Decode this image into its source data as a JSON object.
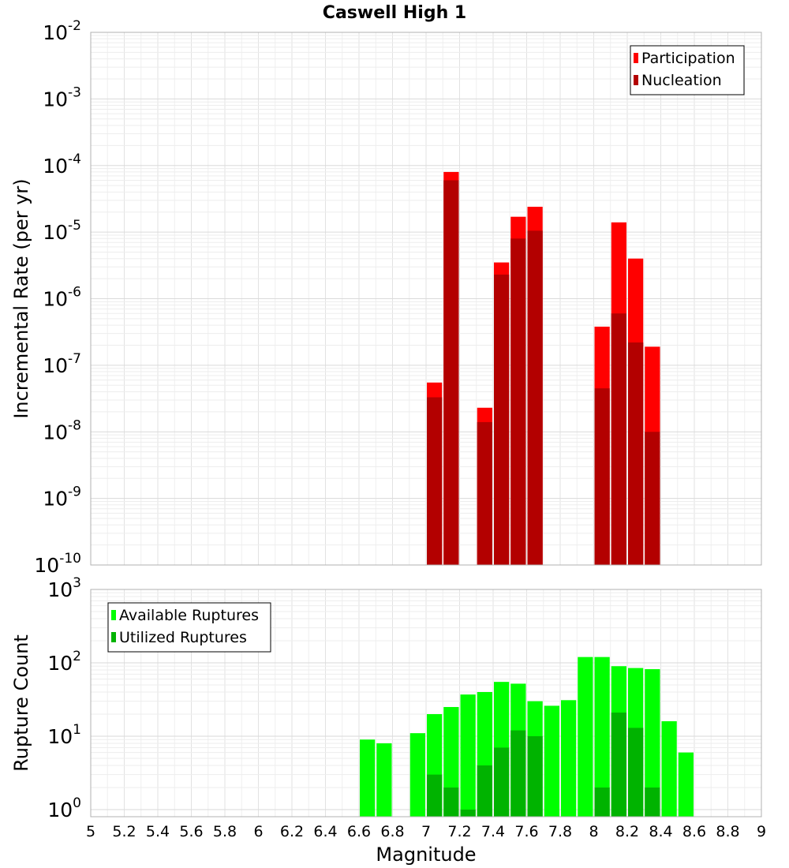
{
  "chart_data": [
    {
      "type": "bar",
      "title": "Caswell High 1",
      "ylabel": "Incremental Rate (per yr)",
      "yscale": "log",
      "ylim": [
        1e-10,
        0.01
      ],
      "xlim": [
        5,
        9
      ],
      "y_tick_bases": [
        "10",
        "10",
        "10",
        "10",
        "10",
        "10",
        "10",
        "10",
        "10"
      ],
      "y_tick_exponents": [
        "-10",
        "-9",
        "-8",
        "-7",
        "-6",
        "-5",
        "-4",
        "-3",
        "-2"
      ],
      "legend_position": "top-right",
      "grid": true,
      "series": [
        {
          "name": "Participation",
          "color": "#ff0000",
          "x": [
            7.05,
            7.15,
            7.35,
            7.45,
            7.55,
            7.65,
            8.05,
            8.15,
            8.25,
            8.35
          ],
          "values": [
            5.5e-08,
            8e-05,
            2.3e-08,
            3.5e-06,
            1.7e-05,
            2.4e-05,
            3.8e-07,
            1.4e-05,
            4e-06,
            1.9e-07
          ]
        },
        {
          "name": "Nucleation",
          "color": "#b30000",
          "x": [
            7.05,
            7.15,
            7.35,
            7.45,
            7.55,
            7.65,
            8.05,
            8.15,
            8.25,
            8.35
          ],
          "values": [
            3.3e-08,
            6e-05,
            1.4e-08,
            2.3e-06,
            8e-06,
            1.05e-05,
            4.5e-08,
            6e-07,
            2.2e-07,
            1e-08
          ]
        }
      ]
    },
    {
      "type": "bar",
      "xlabel": "Magnitude",
      "ylabel": "Rupture Count",
      "yscale": "log",
      "ylim": [
        0.8,
        1000
      ],
      "xlim": [
        5,
        9
      ],
      "x_ticks": [
        "5",
        "5.2",
        "5.4",
        "5.6",
        "5.8",
        "6",
        "6.2",
        "6.4",
        "6.6",
        "6.8",
        "7",
        "7.2",
        "7.4",
        "7.6",
        "7.8",
        "8",
        "8.2",
        "8.4",
        "8.6",
        "8.8",
        "9"
      ],
      "y_tick_bases": [
        "10",
        "10",
        "10",
        "10"
      ],
      "y_tick_exponents": [
        "0",
        "1",
        "2",
        "3"
      ],
      "legend_position": "top-left",
      "grid": true,
      "series": [
        {
          "name": "Available Ruptures",
          "color": "#00ff00",
          "x": [
            6.65,
            6.75,
            6.95,
            7.05,
            7.15,
            7.25,
            7.35,
            7.45,
            7.55,
            7.65,
            7.75,
            7.85,
            7.95,
            8.05,
            8.15,
            8.25,
            8.35,
            8.45,
            8.55
          ],
          "values": [
            9,
            8,
            11,
            20,
            25,
            37,
            40,
            55,
            52,
            30,
            26,
            31,
            120,
            120,
            90,
            85,
            82,
            16,
            6
          ]
        },
        {
          "name": "Utilized Ruptures",
          "color": "#00b300",
          "x": [
            7.05,
            7.15,
            7.25,
            7.35,
            7.45,
            7.55,
            7.65,
            8.05,
            8.15,
            8.25,
            8.35
          ],
          "values": [
            3,
            2,
            1,
            4,
            7,
            12,
            10,
            2,
            21,
            13,
            2
          ]
        }
      ]
    }
  ]
}
